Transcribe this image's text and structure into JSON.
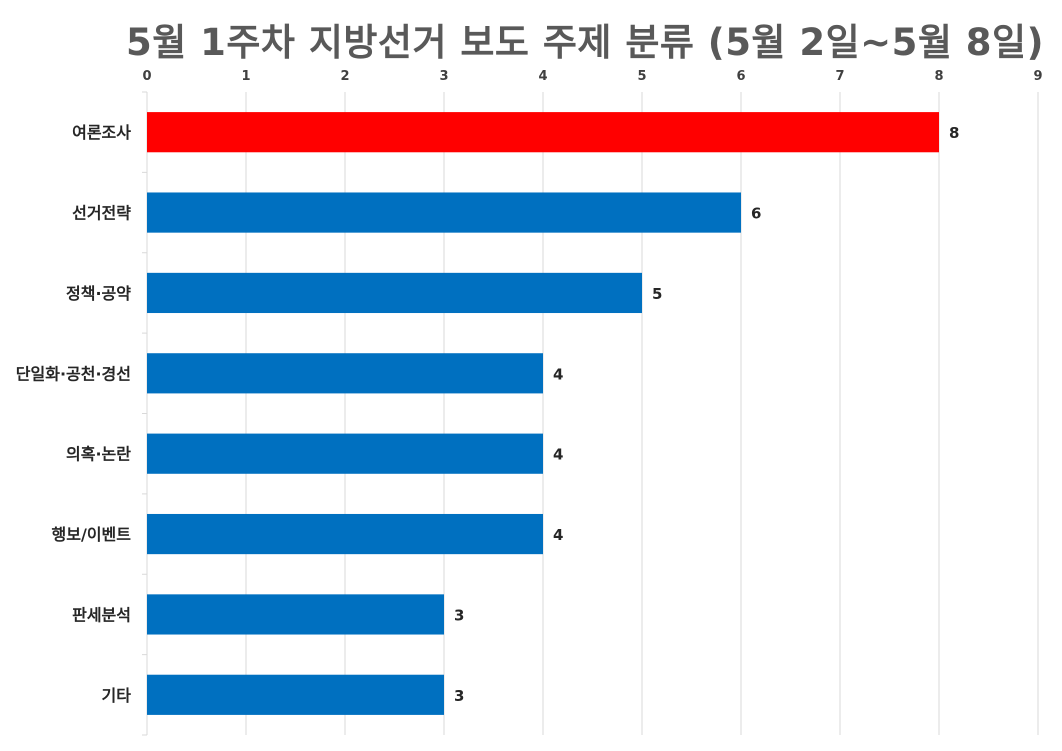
{
  "chart_data": {
    "type": "bar",
    "orientation": "horizontal",
    "title": "5월 1주차 지방선거 보도 주제 분류 (5월 2일~5월 8일)",
    "categories": [
      "여론조사",
      "선거전략",
      "정책·공약",
      "단일화·공천·경선",
      "의혹·논란",
      "행보/이벤트",
      "판세분석",
      "기타"
    ],
    "values": [
      8,
      6,
      5,
      4,
      4,
      4,
      3,
      3
    ],
    "xlim": [
      0,
      9
    ],
    "x_ticks": [
      0,
      1,
      2,
      3,
      4,
      5,
      6,
      7,
      8,
      9
    ],
    "x_axis_position": "top",
    "grid": true,
    "data_labels": true,
    "colors": {
      "highlight": "#ff0000",
      "default": "#0070c0",
      "grid": "#d9d9d9"
    },
    "highlight_index": 0
  }
}
